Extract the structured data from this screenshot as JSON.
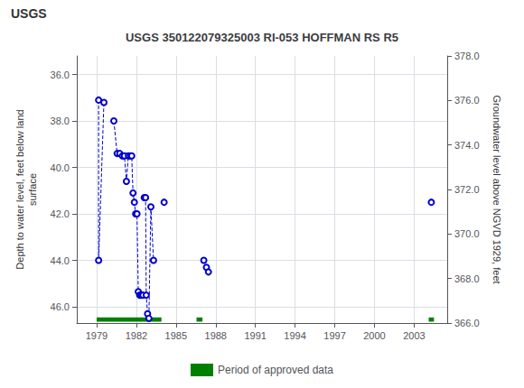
{
  "chart_data": {
    "type": "line",
    "title": "USGS 350122079325003 RI-053 HOFFMAN RS R5",
    "annotations": [
      "USGS"
    ],
    "ylabel": "Depth to water level, feet below land\nsurface",
    "y2label": "Groundwater level above NGVD 1929, feet",
    "xlim": [
      1977.5,
      2005.5
    ],
    "xticks": [
      1979,
      1982,
      1985,
      1988,
      1991,
      1994,
      1997,
      2000,
      2003
    ],
    "ylim": [
      46.7,
      35.2
    ],
    "yticks": [
      {
        "value": 36.0,
        "label": "36.0"
      },
      {
        "value": 38.0,
        "label": "38.0"
      },
      {
        "value": 40.0,
        "label": "40.0"
      },
      {
        "value": 42.0,
        "label": "42.0"
      },
      {
        "value": 44.0,
        "label": "44.0"
      },
      {
        "value": 46.0,
        "label": "46.0"
      }
    ],
    "y2lim": [
      366.0,
      378.0
    ],
    "y2ticks": [
      {
        "value": 366.0,
        "label": "366.0"
      },
      {
        "value": 368.0,
        "label": "368.0"
      },
      {
        "value": 370.0,
        "label": "370.0"
      },
      {
        "value": 372.0,
        "label": "372.0"
      },
      {
        "value": 374.0,
        "label": "374.0"
      },
      {
        "value": 376.0,
        "label": "376.0"
      },
      {
        "value": 378.0,
        "label": "378.0"
      }
    ],
    "grid": true,
    "legend": "bottom",
    "series": [
      {
        "type": "line",
        "color": "#0000CC",
        "line_style": "dashed",
        "marker": "circle",
        "x": [
          1979.15,
          1979.15,
          1979.55
        ],
        "values": [
          37.1,
          44.0,
          37.2
        ]
      },
      {
        "type": "line",
        "color": "#0000CC",
        "line_style": "dashed",
        "marker": "circle",
        "x": [
          1980.3,
          1980.55,
          1980.75,
          1980.95,
          1981.1,
          1981.25,
          1981.4,
          1981.55,
          1981.65,
          1981.75,
          1981.85,
          1981.95,
          1982.05,
          1982.15,
          1982.25,
          1982.3,
          1982.4,
          1982.5
        ],
        "values": [
          38.0,
          39.4,
          39.4,
          39.5,
          39.5,
          40.6,
          39.5,
          39.5,
          39.5,
          41.1,
          41.5,
          42.0,
          42.0,
          45.35,
          45.5,
          45.5,
          45.5,
          45.5
        ]
      },
      {
        "type": "line",
        "color": "#0000CC",
        "line_style": "dashed",
        "marker": "circle",
        "x": [
          1982.6,
          1982.7,
          1982.75,
          1982.85,
          1982.95,
          1983.1,
          1983.3
        ],
        "values": [
          41.3,
          41.3,
          45.5,
          46.3,
          46.5,
          41.7,
          44.0
        ]
      },
      {
        "type": "line",
        "color": "#0000CC",
        "line_style": "dashed",
        "marker": "circle",
        "x": [
          1984.1
        ],
        "values": [
          41.5
        ]
      },
      {
        "type": "line",
        "color": "#0000CC",
        "line_style": "dashed",
        "marker": "circle",
        "x": [
          1987.1,
          1987.3,
          1987.45
        ],
        "values": [
          44.0,
          44.3,
          44.5
        ]
      },
      {
        "type": "line",
        "color": "#0000CC",
        "line_style": "dashed",
        "marker": "circle",
        "x": [
          2004.3
        ],
        "values": [
          41.5
        ]
      },
      {
        "type": "range",
        "name": "Period of approved data",
        "color": "#008000",
        "ranges": [
          [
            1979.0,
            1983.9
          ],
          [
            1986.55,
            1987.0
          ],
          [
            2004.1,
            2004.5
          ]
        ],
        "y": 46.55,
        "height": 0.18
      }
    ]
  }
}
